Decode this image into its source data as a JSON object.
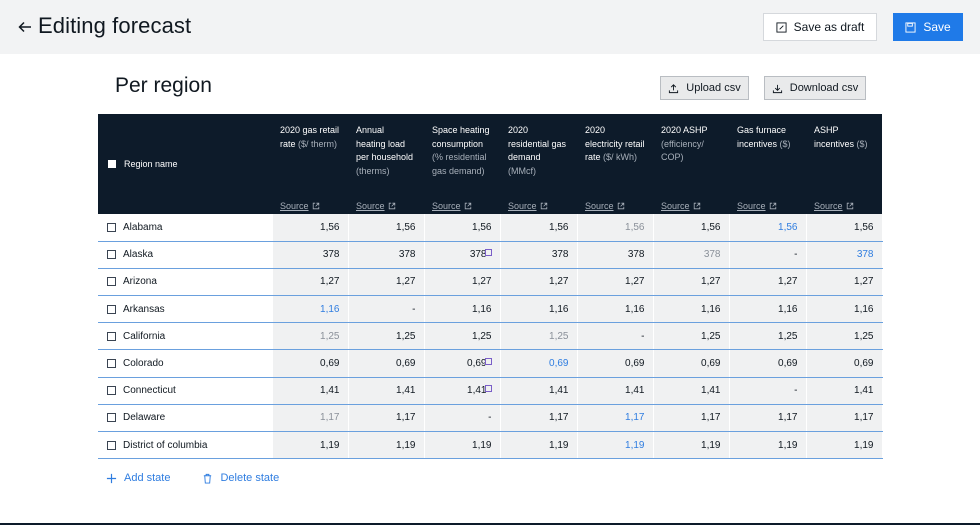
{
  "header": {
    "title": "Editing forecast",
    "draft_label": "Save as draft",
    "save_label": "Save"
  },
  "section": {
    "title": "Per region",
    "upload_label": "Upload csv",
    "download_label": "Download csv"
  },
  "table": {
    "region_header": "Region name",
    "columns": [
      {
        "title": "2020 gas retail rate",
        "unit": "($/ therm)",
        "source": "Source"
      },
      {
        "title": "Annual heating load per household",
        "unit": "(therms)",
        "source": "Source"
      },
      {
        "title": "Space heating consumption",
        "unit": "(% residential gas demand)",
        "source": "Source"
      },
      {
        "title": "2020 residential gas demand",
        "unit": "(MMcf)",
        "source": "Source"
      },
      {
        "title": "2020 electricity retail rate",
        "unit": "($/ kWh)",
        "source": "Source"
      },
      {
        "title": "2020 ASHP",
        "unit": "(efficiency/ COP)",
        "source": "Source"
      },
      {
        "title": "Gas furnace incentives",
        "unit": "($)",
        "source": "Source"
      },
      {
        "title": "ASHP incentives",
        "unit": "($)",
        "source": "Source"
      }
    ],
    "rows": [
      {
        "region": "Alabama",
        "values": [
          "1,56",
          "1,56",
          "1,56",
          "1,56",
          "1,56",
          "1,56",
          "1,56",
          "1,56"
        ],
        "styles": [
          "d",
          "d",
          "d",
          "d",
          "g",
          "d",
          "b",
          "d"
        ]
      },
      {
        "region": "Alaska",
        "values": [
          "378",
          "378",
          "378",
          "378",
          "378",
          "378",
          "-",
          "378"
        ],
        "styles": [
          "d",
          "d",
          "de",
          "d",
          "d",
          "g",
          "d",
          "b"
        ]
      },
      {
        "region": "Arizona",
        "values": [
          "1,27",
          "1,27",
          "1,27",
          "1,27",
          "1,27",
          "1,27",
          "1,27",
          "1,27"
        ],
        "styles": [
          "d",
          "d",
          "d",
          "d",
          "d",
          "d",
          "d",
          "d"
        ]
      },
      {
        "region": "Arkansas",
        "values": [
          "1,16",
          "-",
          "1,16",
          "1,16",
          "1,16",
          "1,16",
          "1,16",
          "1,16"
        ],
        "styles": [
          "b",
          "d",
          "d",
          "d",
          "d",
          "d",
          "d",
          "d"
        ]
      },
      {
        "region": "California",
        "values": [
          "1,25",
          "1,25",
          "1,25",
          "1,25",
          "-",
          "1,25",
          "1,25",
          "1,25"
        ],
        "styles": [
          "g",
          "d",
          "d",
          "g",
          "d",
          "d",
          "d",
          "d"
        ]
      },
      {
        "region": "Colorado",
        "values": [
          "0,69",
          "0,69",
          "0,69",
          "0,69",
          "0,69",
          "0,69",
          "0,69",
          "0,69"
        ],
        "styles": [
          "d",
          "d",
          "de",
          "b",
          "d",
          "d",
          "d",
          "d"
        ]
      },
      {
        "region": "Connecticut",
        "values": [
          "1,41",
          "1,41",
          "1,41",
          "1,41",
          "1,41",
          "1,41",
          "-",
          "1,41"
        ],
        "styles": [
          "d",
          "d",
          "de",
          "d",
          "d",
          "d",
          "d",
          "d"
        ]
      },
      {
        "region": "Delaware",
        "values": [
          "1,17",
          "1,17",
          "-",
          "1,17",
          "1,17",
          "1,17",
          "1,17",
          "1,17"
        ],
        "styles": [
          "g",
          "d",
          "d",
          "d",
          "b",
          "d",
          "d",
          "d"
        ]
      },
      {
        "region": "District of columbia",
        "values": [
          "1,19",
          "1,19",
          "1,19",
          "1,19",
          "1,19",
          "1,19",
          "1,19",
          "1,19"
        ],
        "styles": [
          "d",
          "d",
          "d",
          "d",
          "b",
          "d",
          "d",
          "d"
        ]
      }
    ]
  },
  "footer": {
    "add_label": "Add state",
    "delete_label": "Delete state"
  },
  "colors": {
    "accent": "#1f7ae8",
    "header_bg": "#0d1b2a",
    "cell_bg": "#f0f1f2",
    "row_divider": "#6aa0de",
    "blue_value": "#2f7de0",
    "gray_value": "#8a9099"
  },
  "icons": {
    "back": "arrow-left-icon",
    "draft": "edit-icon",
    "save": "save-icon",
    "upload": "upload-icon",
    "download": "download-icon",
    "source": "external-link-icon",
    "add": "plus-icon",
    "delete": "trash-icon"
  }
}
